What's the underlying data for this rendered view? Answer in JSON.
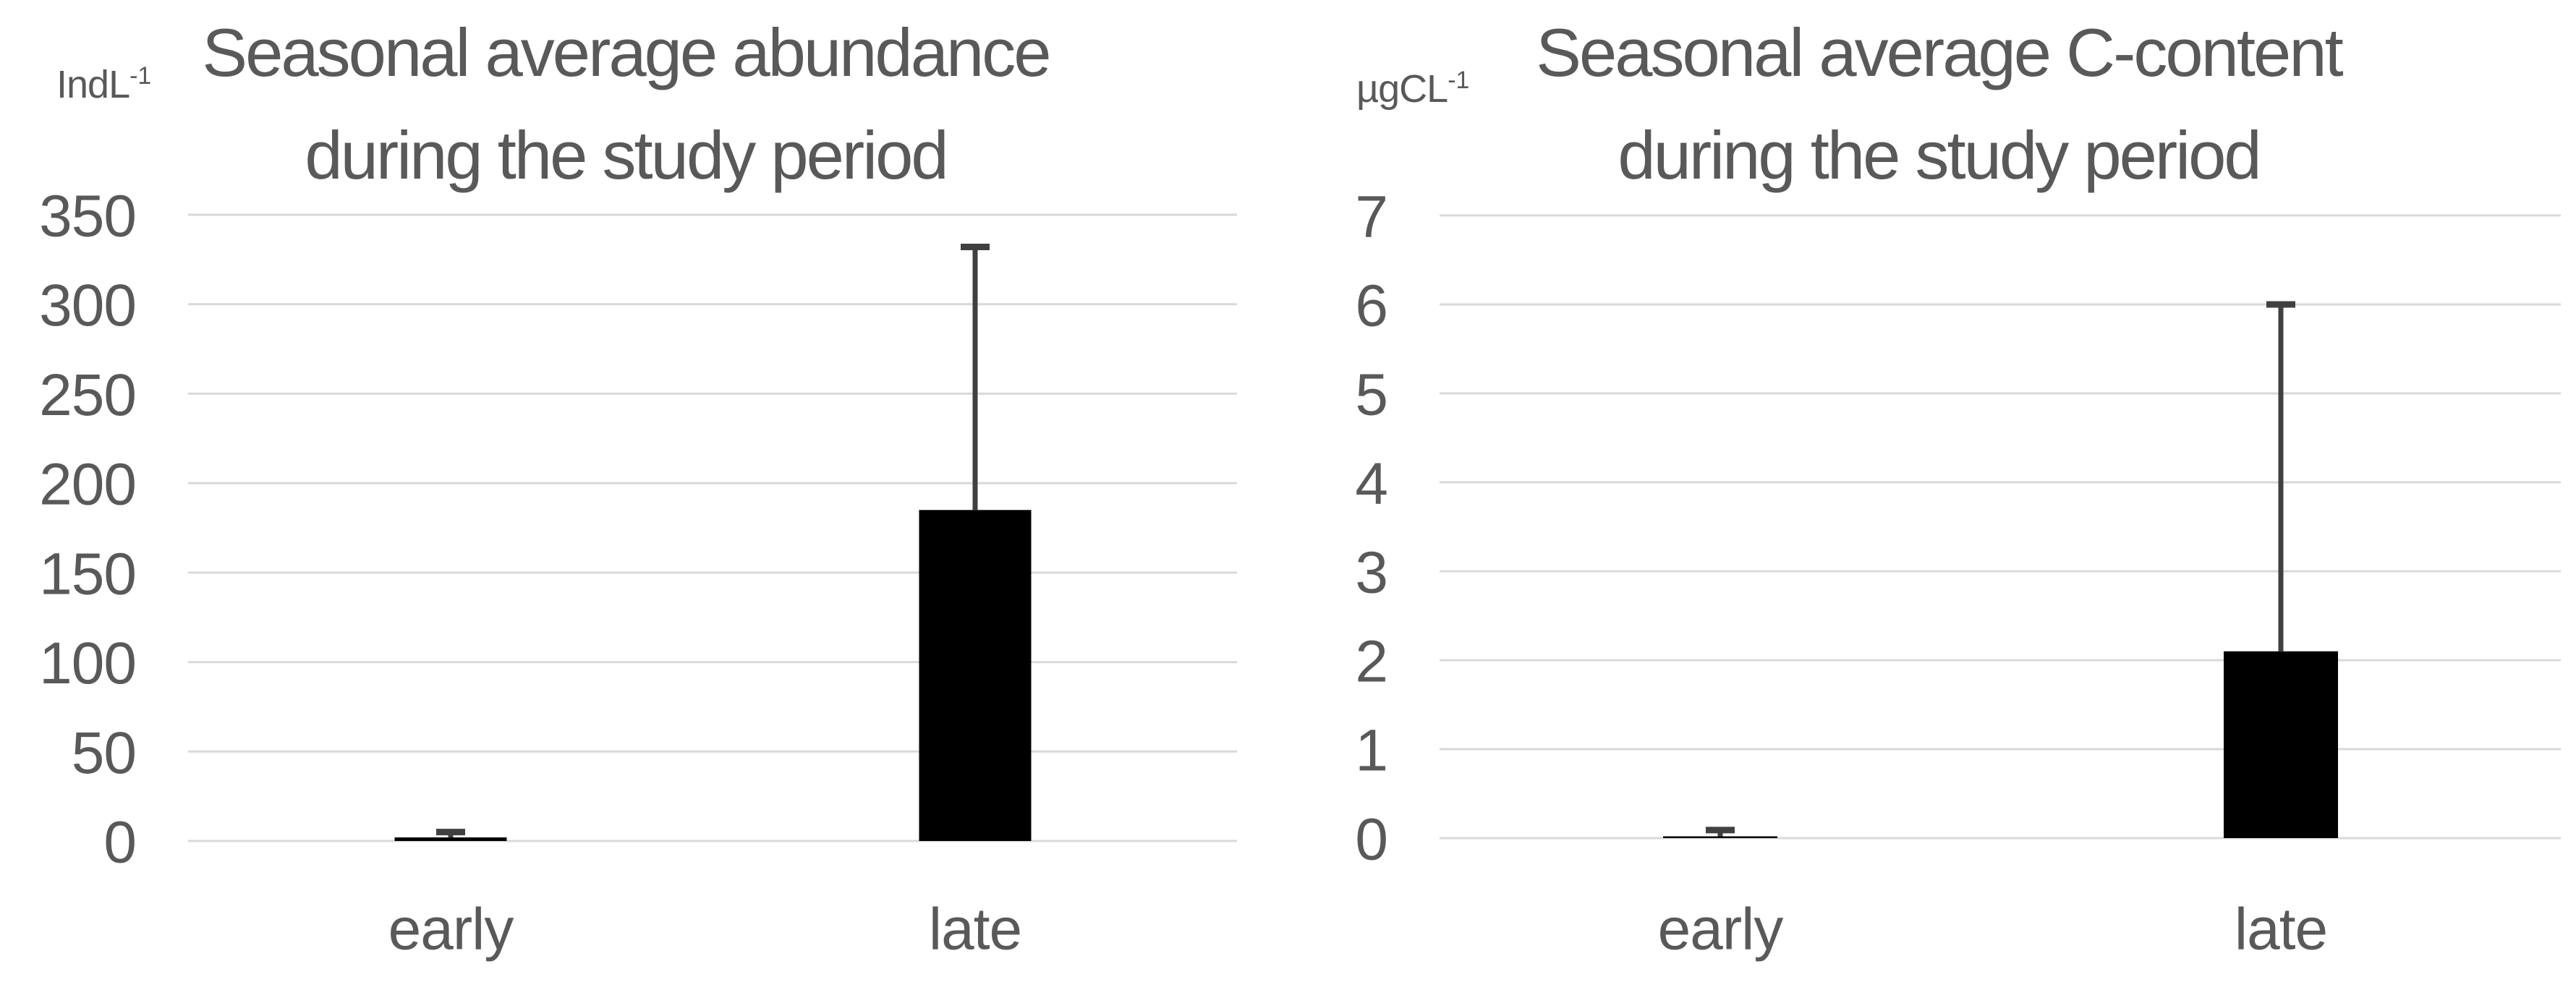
{
  "colors": {
    "text": "#595959",
    "gridline": "#d9d9d9",
    "bar": "#000000",
    "error_bar": "#404040",
    "background": "#ffffff"
  },
  "chart_data": [
    {
      "type": "bar",
      "title": "Seasonal average abundance during the study period",
      "title_lines": [
        "Seasonal average abundance",
        "during the study period"
      ],
      "ylabel": "IndL⁻¹",
      "unit_base": "IndL",
      "unit_sup": "-1",
      "categories": [
        "early",
        "late"
      ],
      "values": [
        2,
        185
      ],
      "error_top": [
        5,
        332
      ],
      "ylim": [
        0,
        350
      ],
      "yticks": [
        0,
        50,
        100,
        150,
        200,
        250,
        300,
        350
      ],
      "grid": true,
      "legend": false,
      "bar_color": "#000000",
      "error_color": "#404040"
    },
    {
      "type": "bar",
      "title": "Seasonal average C-content during the study period",
      "title_lines": [
        "Seasonal average C-content",
        "during the study period"
      ],
      "ylabel": "µgCL⁻¹",
      "unit_base": "µgCL",
      "unit_sup": "-1",
      "categories": [
        "early",
        "late"
      ],
      "values": [
        0.02,
        2.1
      ],
      "error_top": [
        0.09,
        6
      ],
      "ylim": [
        0,
        7
      ],
      "yticks": [
        0,
        1,
        2,
        3,
        4,
        5,
        6,
        7
      ],
      "grid": true,
      "legend": false,
      "bar_color": "#000000",
      "error_color": "#404040"
    }
  ]
}
